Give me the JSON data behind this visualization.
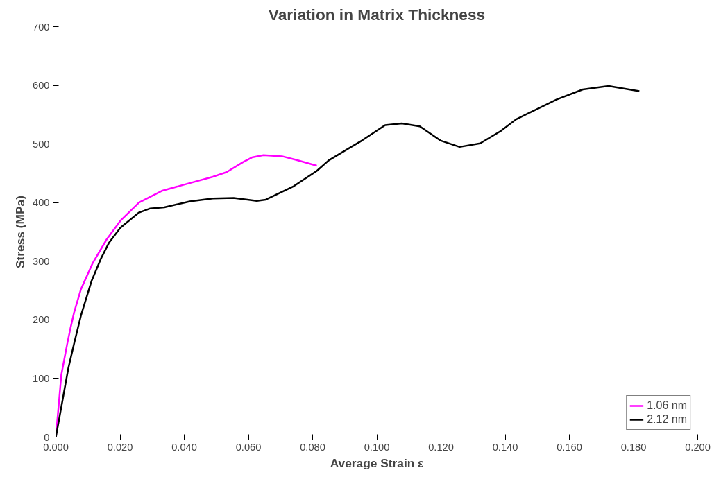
{
  "chart_data": {
    "type": "line",
    "title": "Variation in Matrix Thickness",
    "xlabel": "Average Strain ε",
    "ylabel": "Stress (MPa)",
    "xlim": [
      0,
      0.2
    ],
    "ylim": [
      0,
      700
    ],
    "xticks": [
      {
        "value": 0,
        "label": "0.000"
      },
      {
        "value": 0.02,
        "label": "0.020"
      },
      {
        "value": 0.04,
        "label": "0.040"
      },
      {
        "value": 0.06,
        "label": "0.060"
      },
      {
        "value": 0.08,
        "label": "0.080"
      },
      {
        "value": 0.1,
        "label": "0.100"
      },
      {
        "value": 0.12,
        "label": "0.120"
      },
      {
        "value": 0.14,
        "label": "0.140"
      },
      {
        "value": 0.16,
        "label": "0.160"
      },
      {
        "value": 0.18,
        "label": "0.180"
      },
      {
        "value": 0.2,
        "label": "0.200"
      }
    ],
    "yticks": [
      0,
      100,
      200,
      300,
      400,
      500,
      600,
      700
    ],
    "grid": false,
    "legend": "bottom right",
    "marker": "none",
    "line_style": "solid",
    "series": [
      {
        "name": "1.06 nm",
        "color": "#ff00ff",
        "x": [
          0,
          0.0017,
          0.0035,
          0.0046,
          0.0057,
          0.0078,
          0.0114,
          0.0158,
          0.0201,
          0.0259,
          0.033,
          0.0395,
          0.0489,
          0.0532,
          0.0583,
          0.0611,
          0.0647,
          0.0705,
          0.0748,
          0.0813
        ],
        "values": [
          0,
          106,
          158,
          187,
          213,
          252,
          296,
          337,
          369,
          400,
          420,
          430,
          444,
          452,
          469,
          477,
          481,
          479,
          473,
          463
        ]
      },
      {
        "name": "2.12 nm",
        "color": "#000000",
        "x": [
          0,
          0.0039,
          0.0057,
          0.0078,
          0.0111,
          0.014,
          0.0165,
          0.0201,
          0.0259,
          0.0294,
          0.0338,
          0.0417,
          0.0489,
          0.0554,
          0.0597,
          0.0626,
          0.0654,
          0.0741,
          0.0813,
          0.085,
          0.0954,
          0.1026,
          0.1078,
          0.1134,
          0.1198,
          0.1258,
          0.1322,
          0.1386,
          0.1434,
          0.1561,
          0.1642,
          0.1722,
          0.1818
        ],
        "values": [
          0,
          118,
          160,
          207,
          266,
          304,
          331,
          357,
          383,
          390,
          392,
          402,
          407,
          408,
          405,
          403,
          405,
          428,
          454,
          472,
          506,
          532,
          535,
          530,
          506,
          495,
          501,
          522,
          542,
          576,
          593,
          599,
          590
        ]
      }
    ]
  }
}
